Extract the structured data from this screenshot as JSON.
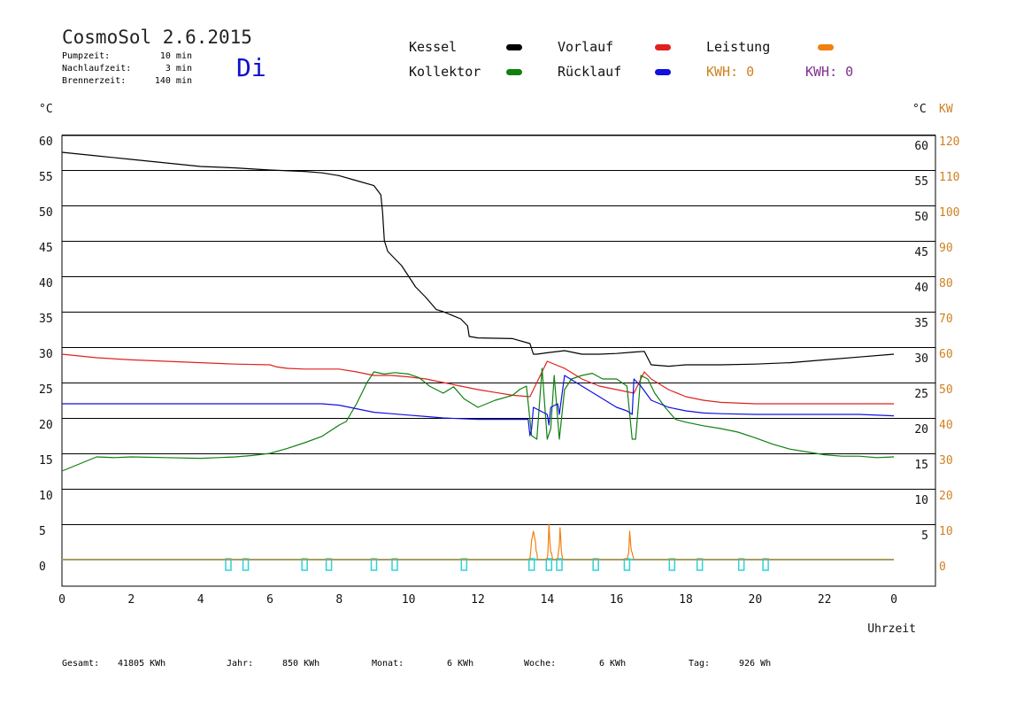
{
  "header": {
    "title": "CosmoSol 2.6.2015",
    "day": "Di",
    "info": [
      {
        "label": "Pumpzeit:",
        "value": "10 min"
      },
      {
        "label": "Nachlaufzeit:",
        "value": "3 min"
      },
      {
        "label": "Brennerzeit:",
        "value": "140 min"
      }
    ]
  },
  "legend": {
    "items": [
      {
        "label": "Kessel",
        "color": "#000000"
      },
      {
        "label": "Vorlauf",
        "color": "#e02020"
      },
      {
        "label": "Leistung",
        "color": "#f08010"
      },
      {
        "label": "Kollektor",
        "color": "#108010"
      },
      {
        "label": "Rücklauf",
        "color": "#1010e0"
      }
    ],
    "kwh_orange": "KWH: 0",
    "kwh_purple": "KWH: 0",
    "kwh_orange_color": "#d08020",
    "kwh_purple_color": "#803090"
  },
  "units": {
    "left": "°C",
    "right": "°C",
    "right_kw": "KW"
  },
  "footer": {
    "gesamt_label": "Gesamt:",
    "gesamt_value": "41805 KWh",
    "jahr_label": "Jahr:",
    "jahr_value": "850 KWh",
    "monat_label": "Monat:",
    "monat_value": "6 KWh",
    "woche_label": "Woche:",
    "woche_value": "6 KWh",
    "tag_label": "Tag:",
    "tag_value": "926 Wh"
  },
  "chart_data": {
    "type": "line",
    "xlabel": "Uhrzeit",
    "x_tick_labels": [
      "0",
      "2",
      "4",
      "6",
      "8",
      "10",
      "12",
      "14",
      "16",
      "18",
      "20",
      "22",
      "0"
    ],
    "xlim": [
      0,
      24
    ],
    "ylim": [
      -4,
      60
    ],
    "y_ticks_left": [
      0,
      5,
      10,
      15,
      20,
      25,
      30,
      35,
      40,
      45,
      50,
      55,
      60
    ],
    "y_ticks_right_c": [
      5,
      10,
      15,
      20,
      25,
      30,
      35,
      40,
      45,
      50,
      55,
      60
    ],
    "y_ticks_right_kw": [
      0,
      10,
      20,
      30,
      40,
      50,
      60,
      70,
      80,
      90,
      100,
      110,
      120
    ],
    "grid": true,
    "series": [
      {
        "name": "Kessel",
        "color": "#000000",
        "x": [
          0,
          1,
          2,
          3,
          4,
          5,
          6,
          7,
          7.5,
          8,
          8.5,
          9,
          9.2,
          9.25,
          9.3,
          9.4,
          9.5,
          9.8,
          10,
          10.2,
          10.5,
          10.8,
          11,
          11.5,
          11.7,
          11.75,
          12,
          13,
          13.5,
          13.6,
          13.7,
          14,
          14.5,
          15,
          15.5,
          16,
          16.5,
          16.8,
          17,
          17.5,
          18,
          19,
          20,
          21,
          22,
          23,
          24
        ],
        "y": [
          57.5,
          57,
          56.5,
          56,
          55.5,
          55.3,
          55,
          54.8,
          54.6,
          54.2,
          53.5,
          52.8,
          51.5,
          49,
          45,
          43.5,
          43,
          41.5,
          40,
          38.5,
          37,
          35.3,
          35,
          34,
          33,
          31.5,
          31.3,
          31.2,
          30.5,
          29,
          29,
          29.2,
          29.5,
          29,
          29,
          29.1,
          29.3,
          29.4,
          27.5,
          27.3,
          27.5,
          27.5,
          27.6,
          27.8,
          28.2,
          28.6,
          29
        ]
      },
      {
        "name": "Vorlauf",
        "color": "#e02020",
        "x": [
          0,
          1,
          2,
          3,
          4,
          5,
          6,
          6.2,
          6.5,
          7,
          7.5,
          8,
          8.5,
          9,
          9.5,
          10,
          10.5,
          11,
          11.5,
          12,
          12.5,
          13,
          13.5,
          14,
          14.5,
          15,
          15.5,
          16,
          16.5,
          16.8,
          17,
          17.5,
          18,
          18.5,
          19,
          20,
          21,
          22,
          23,
          24
        ],
        "y": [
          29,
          28.5,
          28.2,
          28,
          27.8,
          27.6,
          27.5,
          27.2,
          27,
          26.9,
          26.9,
          26.9,
          26.5,
          26,
          26,
          25.8,
          25.5,
          25,
          24.5,
          24,
          23.6,
          23.2,
          23,
          28,
          27,
          25.5,
          24.5,
          24,
          23.5,
          26.5,
          25.5,
          24,
          23,
          22.5,
          22.2,
          22,
          22,
          22,
          22,
          22
        ]
      },
      {
        "name": "Kollektor",
        "color": "#108010",
        "x": [
          0,
          0.5,
          1,
          1.5,
          2,
          3,
          4,
          4.5,
          5,
          5.5,
          6,
          6.5,
          7,
          7.5,
          8,
          8.2,
          8.5,
          8.8,
          9,
          9.3,
          9.6,
          10,
          10.3,
          10.6,
          11,
          11.3,
          11.6,
          12,
          12.5,
          13,
          13.2,
          13.4,
          13.55,
          13.7,
          13.85,
          14,
          14.1,
          14.2,
          14.35,
          14.5,
          14.7,
          15,
          15.3,
          15.6,
          16,
          16.3,
          16.45,
          16.55,
          16.7,
          16.9,
          17.1,
          17.4,
          17.7,
          18,
          18.5,
          19,
          19.5,
          20,
          20.5,
          21,
          21.5,
          22,
          22.5,
          23,
          23.5,
          24
        ],
        "y": [
          12.5,
          13.5,
          14.5,
          14.4,
          14.5,
          14.4,
          14.3,
          14.4,
          14.5,
          14.7,
          15,
          15.7,
          16.5,
          17.4,
          19,
          19.5,
          22,
          25,
          26.5,
          26.2,
          26.4,
          26.2,
          25.7,
          24.5,
          23.5,
          24.4,
          22.7,
          21.5,
          22.5,
          23.2,
          24,
          24.5,
          17.5,
          17,
          27,
          17,
          18.5,
          26,
          17,
          24,
          25.5,
          26,
          26.3,
          25.5,
          25.5,
          24.5,
          17,
          17,
          26,
          25.5,
          23.5,
          21.5,
          19.8,
          19.4,
          18.9,
          18.5,
          18,
          17.2,
          16.3,
          15.6,
          15.2,
          14.8,
          14.6,
          14.6,
          14.4,
          14.5
        ]
      },
      {
        "name": "Rücklauf",
        "color": "#1010e0",
        "x": [
          0,
          1,
          2,
          3,
          4,
          5,
          6,
          7,
          7.5,
          8,
          8.5,
          9,
          9.5,
          10,
          10.5,
          11,
          12,
          13,
          13.45,
          13.5,
          13.55,
          13.6,
          13.8,
          14,
          14.05,
          14.1,
          14.3,
          14.35,
          14.5,
          15,
          15.5,
          16,
          16.3,
          16.45,
          16.5,
          16.7,
          17,
          17.5,
          18,
          18.5,
          19,
          20,
          21,
          22,
          23,
          24
        ],
        "y": [
          22,
          22,
          22,
          22,
          22,
          22,
          22,
          22,
          22,
          21.8,
          21.3,
          20.8,
          20.6,
          20.4,
          20.2,
          20,
          19.8,
          19.8,
          19.8,
          17.5,
          18.5,
          21.5,
          21,
          20.5,
          19,
          21.5,
          22,
          20.5,
          26,
          24.5,
          23,
          21.5,
          21,
          20.5,
          25.5,
          24.5,
          22.5,
          21.5,
          21,
          20.7,
          20.6,
          20.5,
          20.5,
          20.5,
          20.5,
          20.3
        ]
      },
      {
        "name": "Leistung",
        "color": "#f08010",
        "x": [
          0,
          13.5,
          13.52,
          13.55,
          13.58,
          13.6,
          13.62,
          13.64,
          13.66,
          13.68,
          13.7,
          13.72,
          14.0,
          14.02,
          14.05,
          14.07,
          14.1,
          14.12,
          14.14,
          14.16,
          14.3,
          14.32,
          14.35,
          14.37,
          14.39,
          14.41,
          14.43,
          14.45,
          16.3,
          16.35,
          16.38,
          16.41,
          16.43,
          16.45,
          16.47,
          16.5,
          24
        ],
        "y": [
          0,
          0,
          1,
          2.7,
          3.5,
          4,
          3.5,
          3,
          2.5,
          1.2,
          1,
          0,
          0,
          1,
          5,
          3,
          1,
          1,
          0.5,
          0,
          0,
          1,
          2,
          4.5,
          3,
          1,
          0.5,
          0,
          0,
          1,
          4,
          2,
          1.2,
          1,
          0.5,
          0,
          0
        ]
      }
    ],
    "pump_markers_x": [
      4.8,
      5.3,
      7.0,
      7.7,
      9.0,
      9.6,
      11.6,
      13.55,
      14.05,
      14.35,
      15.4,
      16.3,
      17.6,
      18.4,
      19.6,
      20.3
    ]
  }
}
